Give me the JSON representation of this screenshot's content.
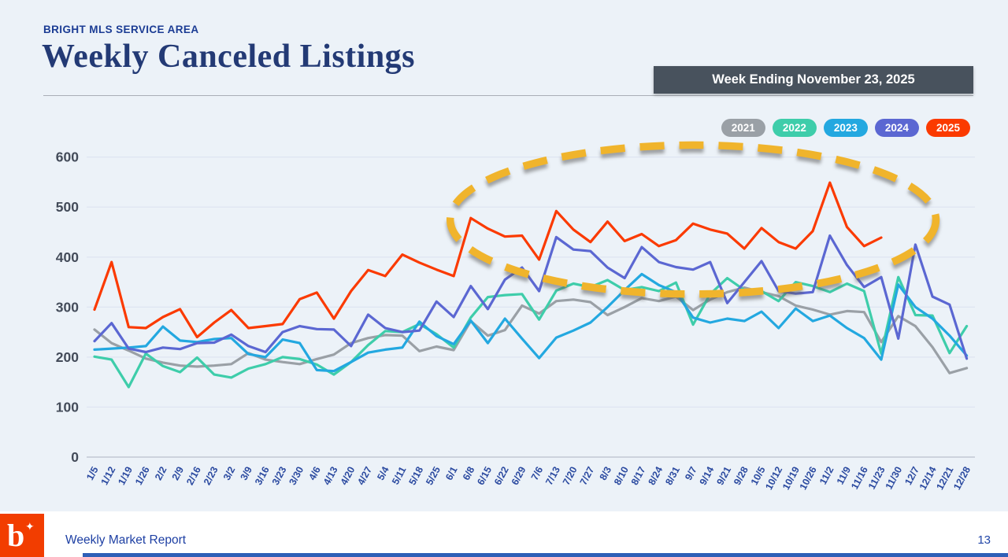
{
  "header": {
    "eyebrow": "BRIGHT MLS SERVICE AREA",
    "title": "Weekly Canceled Listings",
    "banner": "Week Ending November 23, 2025"
  },
  "footer": {
    "report_label": "Weekly Market Report",
    "page_number": "13",
    "logo_letter": "b",
    "logo_star": "✦"
  },
  "colors": {
    "page_background": "#ecf2f8",
    "banner_background": "#48525d",
    "title_text": "#233a75",
    "axis_label_blue": "#2b4aa0",
    "ytick_text": "#434b59",
    "gridline": "#dde3f1",
    "baseline": "#c2c8d4",
    "annotation_gold": "#f0b42c",
    "logo_orange": "#f23d00"
  },
  "chart_data": {
    "type": "line",
    "title": "Weekly Canceled Listings",
    "xlabel": "",
    "ylabel": "",
    "ylim": [
      0,
      600
    ],
    "yticks": [
      0,
      100,
      200,
      300,
      400,
      500,
      600
    ],
    "grid": true,
    "legend_position": "top-right",
    "categories": [
      "1/5",
      "1/12",
      "1/19",
      "1/26",
      "2/2",
      "2/9",
      "2/16",
      "2/23",
      "3/2",
      "3/9",
      "3/16",
      "3/23",
      "3/30",
      "4/6",
      "4/13",
      "4/20",
      "4/27",
      "5/4",
      "5/11",
      "5/18",
      "5/25",
      "6/1",
      "6/8",
      "6/15",
      "6/22",
      "6/29",
      "7/6",
      "7/13",
      "7/20",
      "7/27",
      "8/3",
      "8/10",
      "8/17",
      "8/24",
      "8/31",
      "9/7",
      "9/14",
      "9/21",
      "9/28",
      "10/5",
      "10/12",
      "10/19",
      "10/26",
      "11/2",
      "11/9",
      "11/16",
      "11/23",
      "11/30",
      "12/7",
      "12/14",
      "12/21",
      "12/28"
    ],
    "series": [
      {
        "name": "2021",
        "color": "#9aa0a6",
        "values": [
          255,
          228,
          213,
          197,
          189,
          183,
          181,
          183,
          186,
          208,
          195,
          190,
          186,
          196,
          205,
          228,
          238,
          244,
          243,
          212,
          221,
          214,
          272,
          243,
          254,
          303,
          287,
          312,
          315,
          310,
          284,
          300,
          318,
          312,
          321,
          294,
          315,
          330,
          339,
          330,
          322,
          303,
          295,
          285,
          292,
          290,
          230,
          282,
          262,
          220,
          168,
          178
        ]
      },
      {
        "name": "2022",
        "color": "#3ecdaa",
        "values": [
          201,
          195,
          140,
          207,
          182,
          170,
          199,
          165,
          159,
          177,
          186,
          200,
          196,
          185,
          165,
          190,
          224,
          252,
          250,
          266,
          246,
          219,
          279,
          320,
          324,
          326,
          275,
          333,
          347,
          340,
          354,
          334,
          340,
          332,
          349,
          265,
          326,
          358,
          334,
          332,
          312,
          350,
          342,
          330,
          347,
          332,
          207,
          360,
          284,
          283,
          208,
          262
        ]
      },
      {
        "name": "2023",
        "color": "#23a8e0",
        "values": [
          215,
          217,
          219,
          222,
          261,
          233,
          230,
          236,
          238,
          206,
          200,
          235,
          228,
          174,
          172,
          190,
          209,
          215,
          219,
          271,
          242,
          226,
          273,
          228,
          277,
          237,
          198,
          239,
          253,
          269,
          300,
          334,
          366,
          344,
          330,
          279,
          269,
          277,
          272,
          291,
          258,
          297,
          272,
          283,
          258,
          238,
          195,
          345,
          300,
          277,
          243,
          203
        ]
      },
      {
        "name": "2024",
        "color": "#5b67d2",
        "values": [
          232,
          268,
          217,
          210,
          219,
          216,
          228,
          229,
          245,
          222,
          210,
          250,
          262,
          256,
          255,
          222,
          285,
          258,
          250,
          253,
          311,
          280,
          342,
          296,
          355,
          379,
          332,
          440,
          415,
          412,
          379,
          358,
          420,
          390,
          380,
          375,
          390,
          308,
          350,
          392,
          332,
          327,
          330,
          443,
          384,
          340,
          360,
          237,
          425,
          321,
          305,
          197
        ]
      },
      {
        "name": "2025",
        "color": "#fb3a00",
        "values": [
          295,
          390,
          260,
          258,
          280,
          296,
          240,
          269,
          294,
          258,
          262,
          266,
          316,
          329,
          277,
          332,
          374,
          362,
          405,
          389,
          375,
          362,
          478,
          457,
          441,
          443,
          395,
          492,
          455,
          430,
          471,
          432,
          446,
          422,
          434,
          467,
          455,
          447,
          417,
          458,
          430,
          417,
          452,
          549,
          460,
          422,
          439
        ]
      }
    ],
    "annotation": {
      "shape": "ellipse",
      "style": "dashed",
      "color": "#f0b42c",
      "center_week_index": 35.0,
      "radius_weeks": 14.2,
      "center_value": 475,
      "radius_value": 149,
      "meaning": "highlights elevated 2025 canceled listings from late May through November"
    }
  }
}
